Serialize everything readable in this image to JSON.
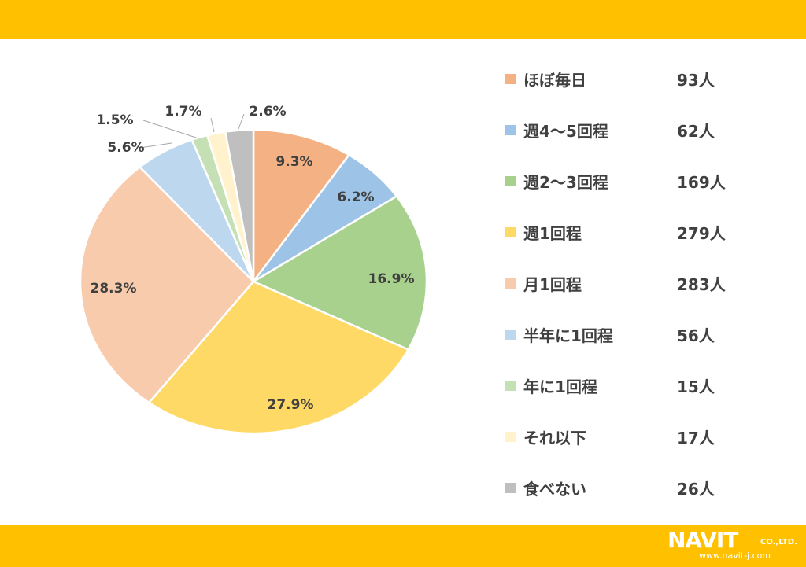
{
  "chart_data": {
    "type": "pie",
    "slices": [
      {
        "label": "ほぼ毎日",
        "count": "93人",
        "value": 9.3,
        "pct_label": "9.3%",
        "color": "#f4b183"
      },
      {
        "label": "週4～5回程",
        "count": "62人",
        "value": 6.2,
        "pct_label": "6.2%",
        "color": "#9dc3e6"
      },
      {
        "label": "週2～3回程",
        "count": "169人",
        "value": 16.9,
        "pct_label": "16.9%",
        "color": "#a9d18e"
      },
      {
        "label": "週1回程",
        "count": "279人",
        "value": 27.9,
        "pct_label": "27.9%",
        "color": "#ffd966"
      },
      {
        "label": "月1回程",
        "count": "283人",
        "value": 28.3,
        "pct_label": "28.3%",
        "color": "#f8cbad"
      },
      {
        "label": "半年に1回程",
        "count": "56人",
        "value": 5.6,
        "pct_label": "5.6%",
        "color": "#bdd7ee"
      },
      {
        "label": "年に1回程",
        "count": "15人",
        "value": 1.5,
        "pct_label": "1.5%",
        "color": "#c5e0b4"
      },
      {
        "label": "それ以下",
        "count": "17人",
        "value": 1.7,
        "pct_label": "1.7%",
        "color": "#fff2cc"
      },
      {
        "label": "食べない",
        "count": "26人",
        "value": 2.6,
        "pct_label": "2.6%",
        "color": "#bfbfbf"
      }
    ],
    "legend_position": "right"
  },
  "brand": {
    "band_color": "#ffc000",
    "logo_text": "NAVIT",
    "logo_suffix": "CO.,LTD.",
    "url": "www.navit-j.com"
  }
}
